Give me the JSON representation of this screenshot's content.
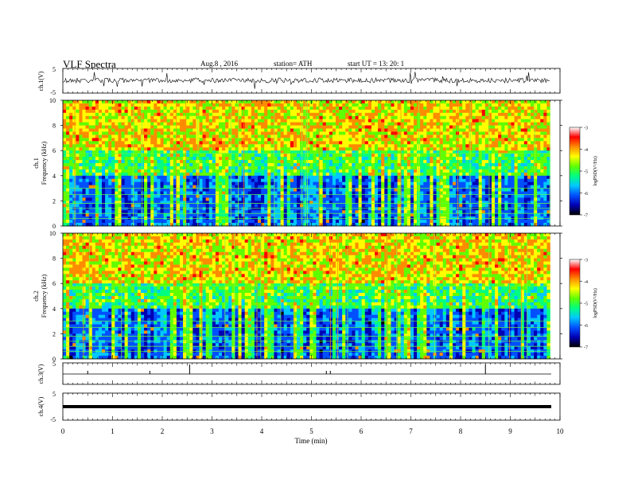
{
  "header": {
    "title": "VLF  Spectra",
    "date": "Aug.8  , 2016",
    "station": "station= ATH",
    "start_ut": "start  UT  =    13: 20: 1"
  },
  "colors": {
    "spec_scale": [
      "#000000",
      "#0000b4",
      "#0050ff",
      "#00c8ff",
      "#00ff80",
      "#60ff00",
      "#ffff00",
      "#ff8c00",
      "#ff0000",
      "#ffffff"
    ],
    "trace": "#000000"
  },
  "chart_data": [
    {
      "type": "line",
      "id": "ch1-waveform",
      "ylabel": "ch.1(V)",
      "ylim": [
        -5,
        5
      ],
      "y_ticks": [
        "5",
        "-5"
      ],
      "description_of_trace": "noisy waveform around 0 V with sferic spikes"
    },
    {
      "type": "heatmap",
      "id": "ch1-spectrogram",
      "ylabel_lines": [
        "ch.1",
        "Frequency  (kHz)"
      ],
      "ylim": [
        0,
        10
      ],
      "y_ticks": [
        "0",
        "2",
        "4",
        "6",
        "8",
        "10"
      ],
      "colorbar": {
        "label": "logPSD(V²/Hz)",
        "ticks": [
          "-3",
          "-4",
          "-5",
          "-6",
          "-7"
        ],
        "range": [
          -7,
          -3
        ]
      }
    },
    {
      "type": "heatmap",
      "id": "ch2-spectrogram",
      "ylabel_lines": [
        "ch.2",
        "Frequency  (kHz)"
      ],
      "ylim": [
        0,
        10
      ],
      "y_ticks": [
        "0",
        "2",
        "4",
        "6",
        "8",
        "10"
      ],
      "colorbar": {
        "label": "logPSD(V²/Hz)",
        "ticks": [
          "-3",
          "-4",
          "-5",
          "-6",
          "-7"
        ],
        "range": [
          -7,
          -3
        ]
      }
    },
    {
      "type": "line",
      "id": "ch3-waveform",
      "ylabel": "ch.3(V)",
      "y_ticks": [
        "5"
      ],
      "spikes_min": [
        0.5,
        1.75,
        2.55,
        5.3,
        5.38,
        8.5
      ]
    },
    {
      "type": "line",
      "id": "ch4-waveform",
      "ylabel": "ch.4(V)",
      "ylim": [
        -5,
        5
      ],
      "y_ticks": [
        "5",
        "-5"
      ]
    }
  ],
  "x_axis": {
    "label": "Time  (min)",
    "xlim": [
      0,
      10
    ],
    "ticks": [
      "0",
      "1",
      "2",
      "3",
      "4",
      "5",
      "6",
      "7",
      "8",
      "9",
      "10"
    ],
    "data_end": 9.8
  }
}
